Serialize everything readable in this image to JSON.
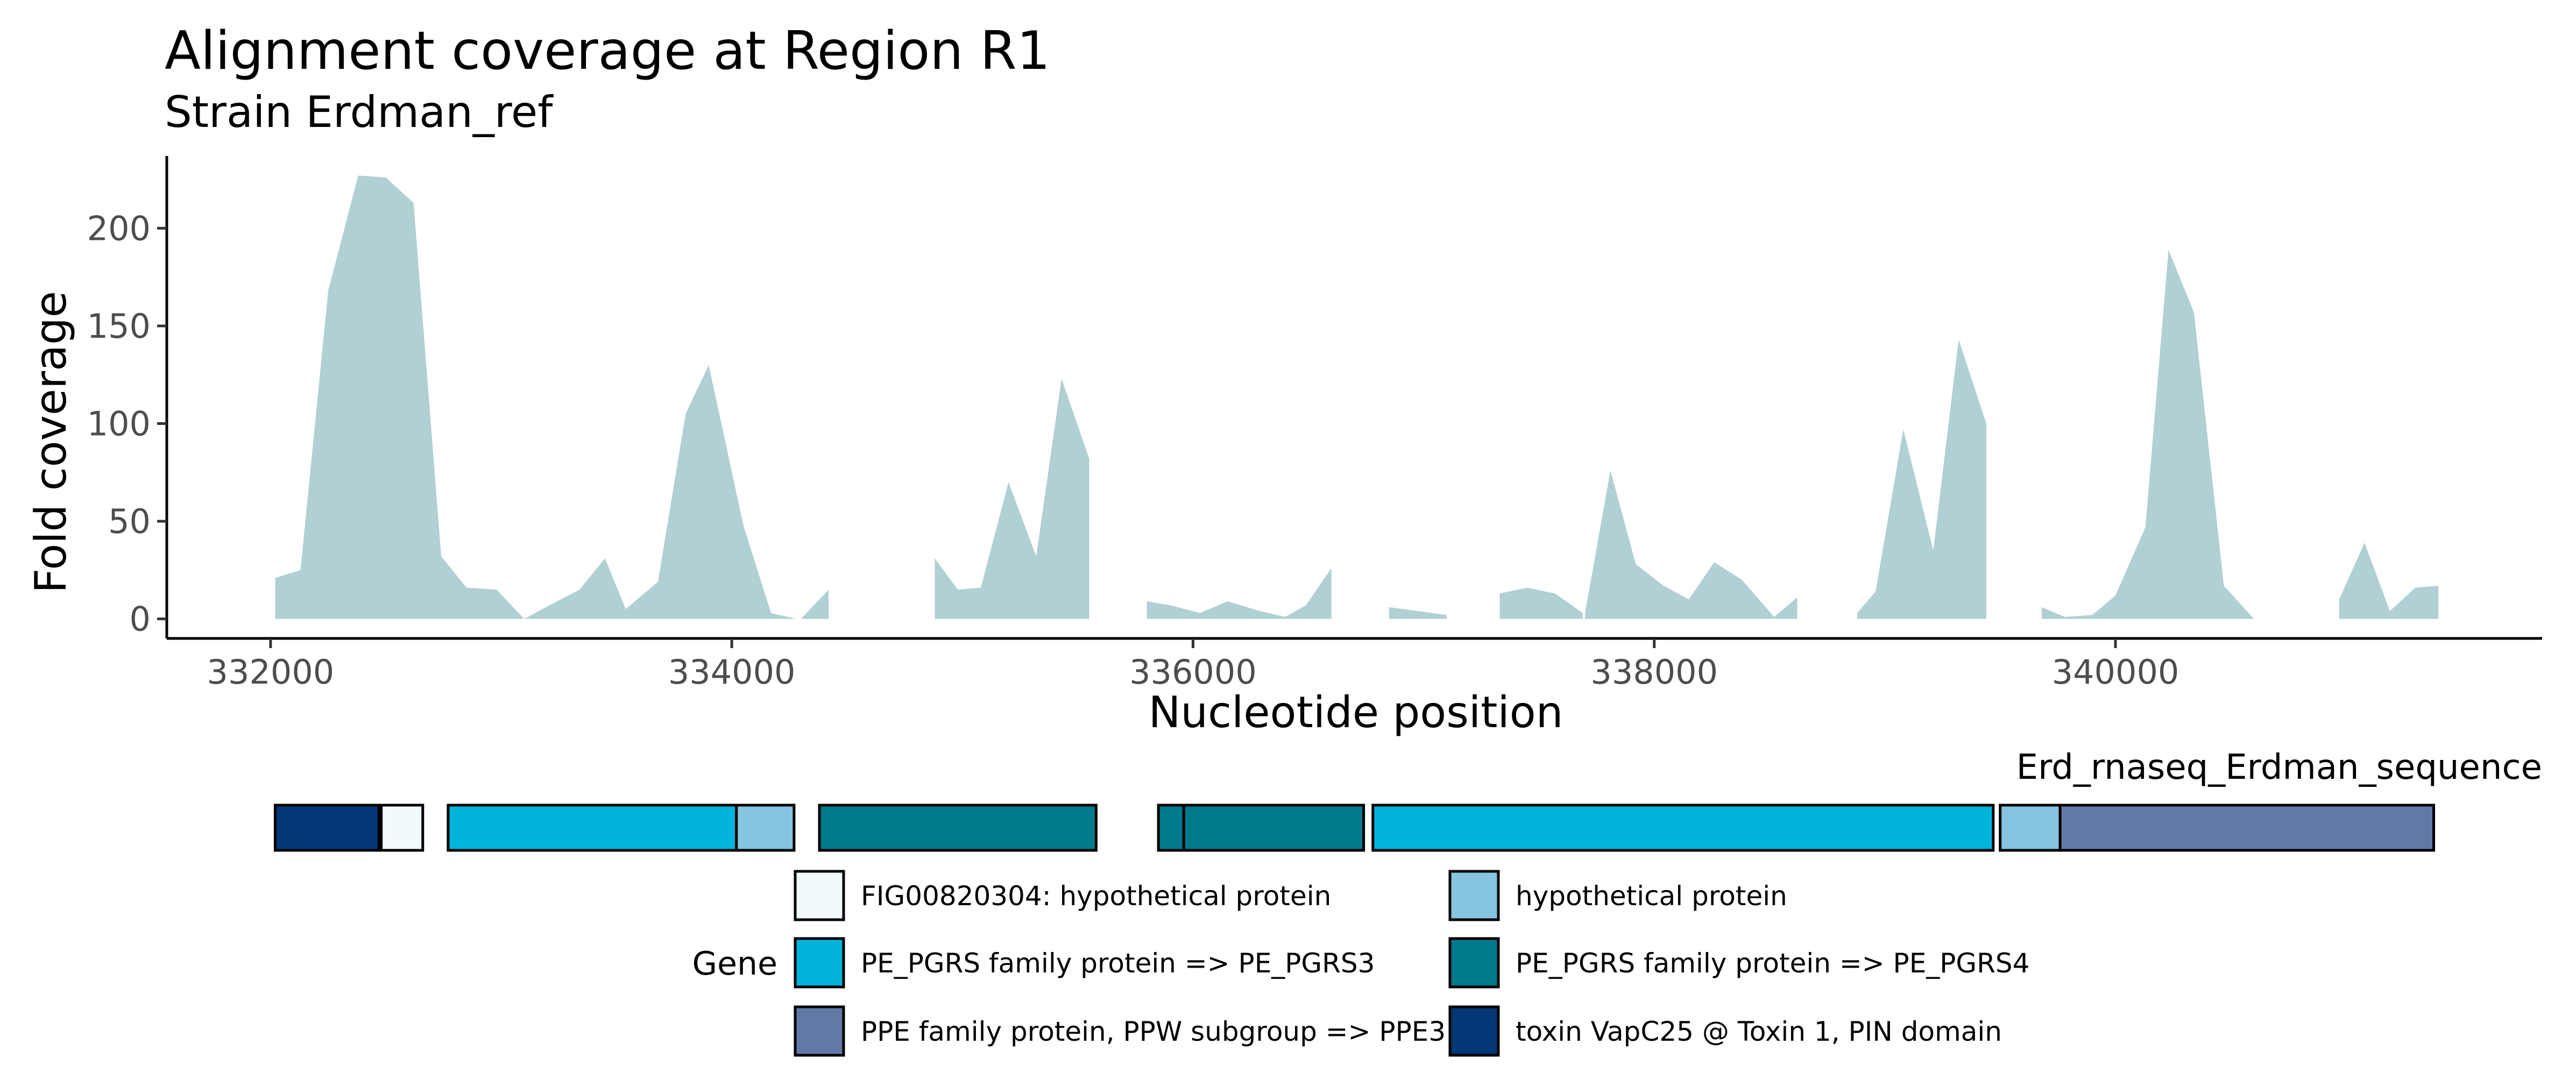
{
  "chart_data": {
    "type": "area",
    "title": "Alignment coverage at Region R1",
    "subtitle": "Strain Erdman_ref",
    "xlabel": "Nucleotide position",
    "ylabel": "Fold coverage",
    "xlim": [
      331550,
      341850
    ],
    "ylim": [
      -10,
      237
    ],
    "x_ticks": [
      332000,
      334000,
      336000,
      338000,
      340000
    ],
    "y_ticks": [
      0,
      50,
      100,
      150,
      200
    ],
    "grid": false,
    "fill_color": "#b0d0d3",
    "coverage_segments": [
      {
        "x": [
          332020,
          332130,
          332250,
          332380,
          332500,
          332620,
          332740,
          332850,
          332980,
          333100
        ],
        "y": [
          21,
          25,
          168,
          227,
          226,
          213,
          32,
          16,
          15,
          0
        ]
      },
      {
        "x": [
          333100,
          333210,
          333340,
          333450,
          333540,
          333680,
          333800,
          333900,
          334050,
          334170,
          334280
        ],
        "y": [
          0,
          7,
          15,
          31,
          5,
          19,
          105,
          130,
          48,
          3,
          0
        ]
      },
      {
        "x": [
          334300,
          334420
        ],
        "y": [
          0,
          15
        ]
      },
      {
        "x": [
          334880,
          334980,
          335080,
          335200,
          335320,
          335430,
          335550
        ],
        "y": [
          31,
          15,
          16,
          70,
          32,
          123,
          82
        ]
      },
      {
        "x": [
          335800,
          335900,
          336030,
          336150,
          336290,
          336400,
          336490,
          336600
        ],
        "y": [
          9,
          7,
          3,
          9,
          4,
          1,
          7,
          26
        ]
      },
      {
        "x": [
          336850,
          337100
        ],
        "y": [
          6,
          2
        ]
      },
      {
        "x": [
          337330,
          337450,
          337570,
          337690
        ],
        "y": [
          13,
          16,
          13,
          3
        ]
      },
      {
        "x": [
          337700,
          337810,
          337920,
          338040,
          338150,
          338260,
          338380,
          338520
        ],
        "y": [
          3,
          76,
          28,
          17,
          10,
          29,
          20,
          1
        ]
      },
      {
        "x": [
          338520,
          338620
        ],
        "y": [
          1,
          11
        ]
      },
      {
        "x": [
          338880,
          338960,
          339080,
          339210,
          339320,
          339440
        ],
        "y": [
          3,
          14,
          97,
          35,
          143,
          100
        ]
      },
      {
        "x": [
          339680,
          339780,
          339900,
          340000,
          340130,
          340230,
          340340,
          340470,
          340600
        ],
        "y": [
          6,
          1,
          2,
          12,
          47,
          189,
          157,
          17,
          0
        ]
      },
      {
        "x": [
          340970,
          341080,
          341190,
          341300,
          341400
        ],
        "y": [
          10,
          39,
          4,
          16,
          17
        ]
      }
    ],
    "gene_track": {
      "label": "Erd_rnaseq_Erdman_sequence",
      "genes": [
        {
          "start": 332020,
          "end": 332470,
          "gene": "toxin VapC25 @ Toxin 1, PIN domain"
        },
        {
          "start": 332480,
          "end": 332660,
          "gene": "FIG00820304: hypothetical protein"
        },
        {
          "start": 332770,
          "end": 334020,
          "gene": "PE_PGRS family protein => PE_PGRS3"
        },
        {
          "start": 334020,
          "end": 334270,
          "gene": "hypothetical protein"
        },
        {
          "start": 334380,
          "end": 335580,
          "gene": "PE_PGRS family protein => PE_PGRS4"
        },
        {
          "start": 335850,
          "end": 335960,
          "gene": "PE_PGRS family protein => PE_PGRS4"
        },
        {
          "start": 335960,
          "end": 336740,
          "gene": "PE_PGRS family protein => PE_PGRS4"
        },
        {
          "start": 336780,
          "end": 339470,
          "gene": "PE_PGRS family protein => PE_PGRS3"
        },
        {
          "start": 339500,
          "end": 339760,
          "gene": "hypothetical protein"
        },
        {
          "start": 339760,
          "end": 341380,
          "gene": "PPE family protein, PPW subgroup => PPE3"
        }
      ]
    },
    "legend": {
      "title": "Gene",
      "position": "bottom",
      "items": [
        {
          "label": "FIG00820304: hypothetical protein",
          "color": "#f2fafb"
        },
        {
          "label": "hypothetical protein",
          "color": "#85c5df"
        },
        {
          "label": "PE_PGRS family protein => PE_PGRS3",
          "color": "#00b4dc"
        },
        {
          "label": "PE_PGRS family protein => PE_PGRS4",
          "color": "#00798c"
        },
        {
          "label": "PPE family protein, PPW subgroup => PPE3",
          "color": "#6279a8"
        },
        {
          "label": "toxin VapC25 @ Toxin 1, PIN domain",
          "color": "#043775"
        }
      ]
    }
  }
}
